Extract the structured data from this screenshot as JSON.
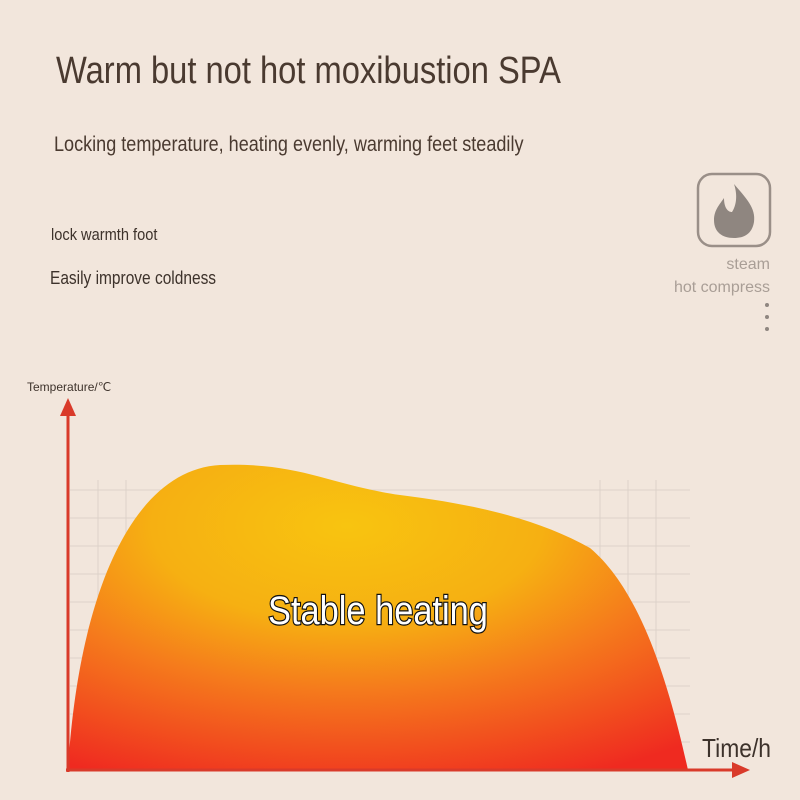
{
  "header": {
    "title": "Warm but not hot moxibustion SPA",
    "subtitle": "Locking temperature, heating evenly, warming feet steadily"
  },
  "features": [
    "lock warmth foot",
    "Easily improve coldness"
  ],
  "icon": {
    "lines": [
      "steam",
      "hot compress"
    ]
  },
  "diagram": {
    "y_label": "Temperature/℃",
    "x_label": "Time/h",
    "center_label": "Stable heating"
  }
}
